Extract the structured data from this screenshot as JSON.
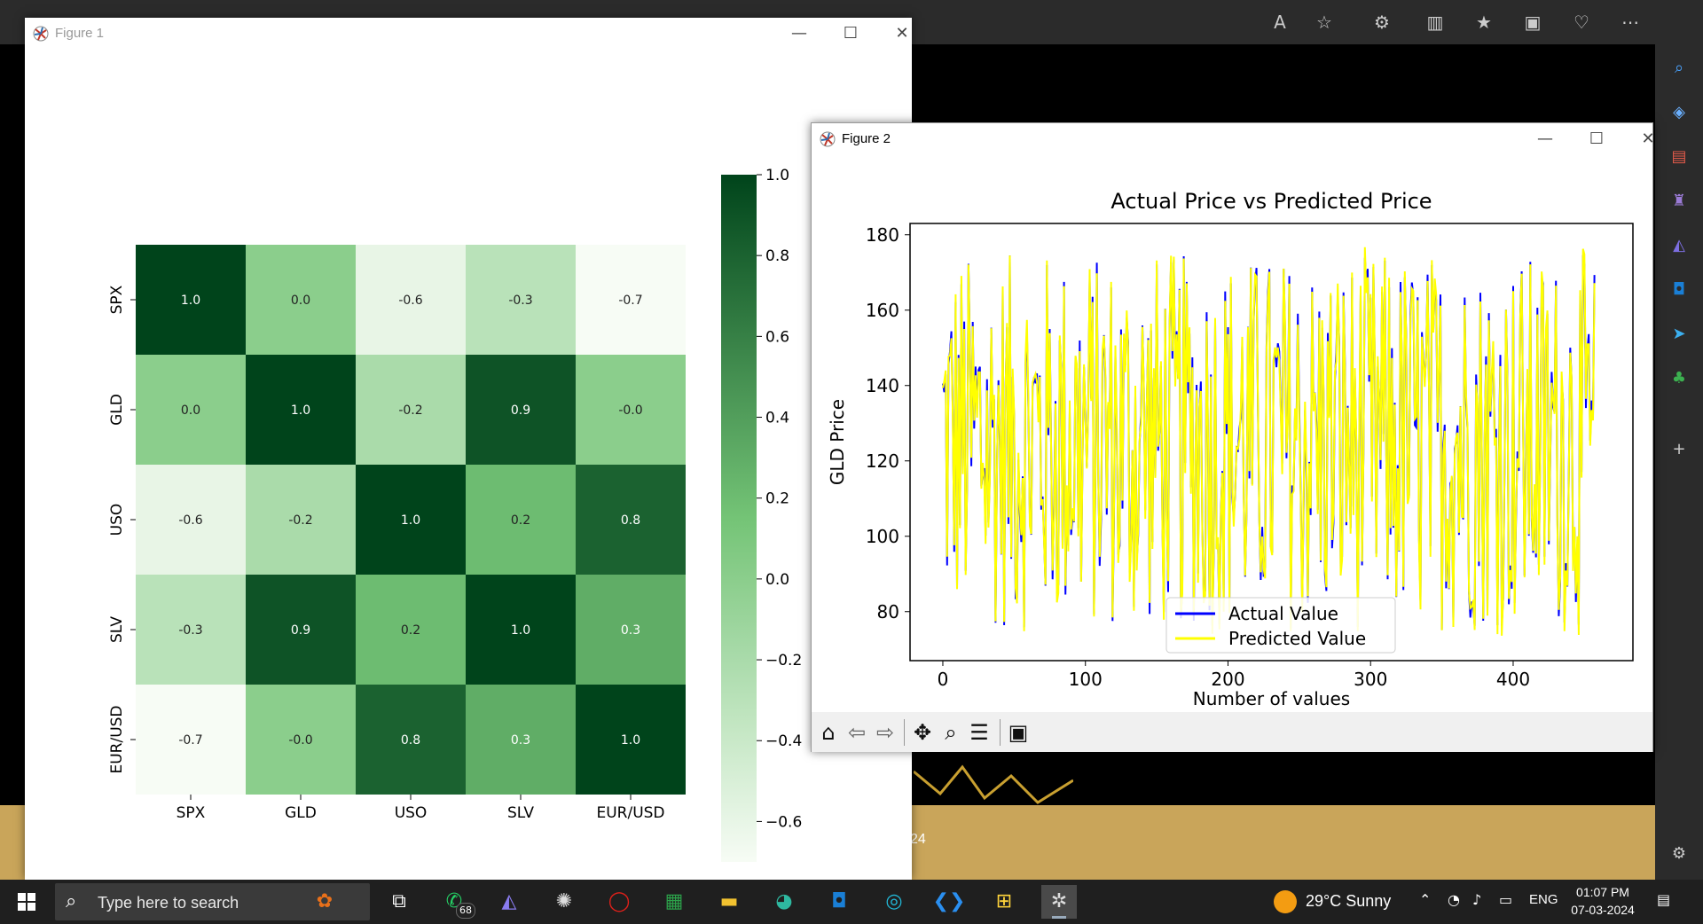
{
  "browser": {
    "banner_text": "24"
  },
  "figure1": {
    "title": "Figure 1",
    "heatmap": {
      "labels": [
        "SPX",
        "GLD",
        "USO",
        "SLV",
        "EUR/USD"
      ],
      "values": [
        [
          1.0,
          0.0,
          -0.6,
          -0.3,
          -0.7
        ],
        [
          0.0,
          1.0,
          -0.2,
          0.9,
          -0.0
        ],
        [
          -0.6,
          -0.2,
          1.0,
          0.2,
          0.8
        ],
        [
          -0.3,
          0.9,
          0.2,
          1.0,
          0.3
        ],
        [
          -0.7,
          -0.0,
          0.8,
          0.3,
          1.0
        ]
      ],
      "display": [
        [
          "1.0",
          "0.0",
          "-0.6",
          "-0.3",
          "-0.7"
        ],
        [
          "0.0",
          "1.0",
          "-0.2",
          "0.9",
          "-0.0"
        ],
        [
          "-0.6",
          "-0.2",
          "1.0",
          "0.2",
          "0.8"
        ],
        [
          "-0.3",
          "0.9",
          "0.2",
          "1.0",
          "0.3"
        ],
        [
          "-0.7",
          "-0.0",
          "0.8",
          "0.3",
          "1.0"
        ]
      ],
      "colorbar_ticks": [
        "1.0",
        "0.8",
        "0.6",
        "0.4",
        "0.2",
        "0.0",
        "−0.2",
        "−0.4",
        "−0.6"
      ],
      "colorbar_values": [
        1.0,
        0.8,
        0.6,
        0.4,
        0.2,
        0.0,
        -0.2,
        -0.4,
        -0.6
      ],
      "colorbar_range": [
        -0.7,
        1.0
      ],
      "cmap": "Greens"
    }
  },
  "figure2": {
    "title": "Figure 2",
    "chart_data": {
      "type": "line",
      "title": "Actual Price vs Predicted Price",
      "xlabel": "Number of values",
      "ylabel": "GLD Price",
      "xticks": [
        "0",
        "100",
        "200",
        "300",
        "400"
      ],
      "xtick_values": [
        0,
        100,
        200,
        300,
        400
      ],
      "yticks": [
        "80",
        "100",
        "120",
        "140",
        "160",
        "180"
      ],
      "ytick_values": [
        80,
        100,
        120,
        140,
        160,
        180
      ],
      "xlim": [
        -23,
        484
      ],
      "ylim": [
        67,
        183
      ],
      "legend_position": "lower-center",
      "n_points": 458,
      "series": [
        {
          "name": "Actual Value",
          "color": "#0000ff"
        },
        {
          "name": "Predicted Value",
          "color": "#ffff00"
        }
      ]
    },
    "toolbar": [
      "home-icon",
      "back-icon",
      "forward-icon",
      "pan-icon",
      "zoom-icon",
      "configure-icon",
      "save-icon"
    ]
  },
  "taskbar": {
    "search_placeholder": "Type here to search",
    "whatsapp_badge": "68",
    "weather": "29°C  Sunny",
    "lang": "ENG",
    "time": "01:07 PM",
    "date": "07-03-2024"
  }
}
